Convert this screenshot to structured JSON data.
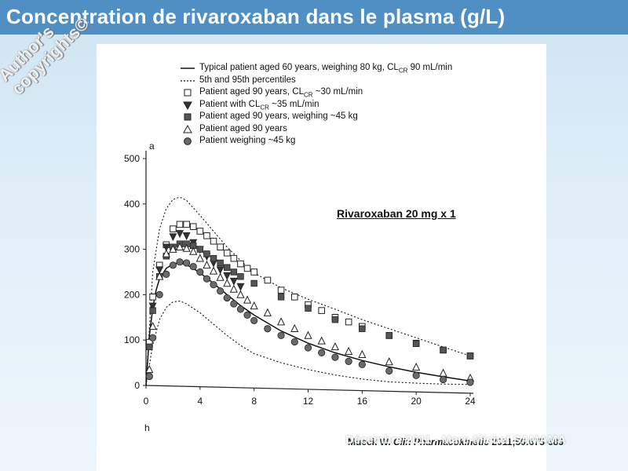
{
  "slide": {
    "title": "Concentration de rivaroxaban dans le plasma (g/L)",
    "watermark_lines": [
      "Author's",
      "copyrights©"
    ],
    "footer_faint": "Décembre 2011 - Marc-Michel SAMAMA"
  },
  "figure": {
    "subtitle": "Rivaroxaban 20 mg x 1",
    "credit_author": "Mueck W.",
    "credit_journal": "Clin Pharmacokinetic",
    "credit_ref": "2011;50:675-686",
    "panel_label": "a",
    "x_axis_label": "h"
  },
  "colors": {
    "title_bar": "#4f8fc4",
    "title_text": "#ffffff",
    "filled_square": "#555555",
    "filled_circle": "#6a6a6a"
  },
  "chart_data": {
    "type": "line",
    "title": "Rivaroxaban 20 mg x 1",
    "xlabel": "h",
    "ylabel": "",
    "xlim": [
      0,
      24
    ],
    "ylim": [
      0,
      500
    ],
    "x_ticks": [
      0,
      4,
      8,
      12,
      16,
      20,
      24
    ],
    "y_ticks": [
      0,
      100,
      200,
      300,
      400,
      500
    ],
    "legend_position": "top",
    "series": [
      {
        "name": "Typical patient aged 60 years, weighing 80 kg, CLCR 90 mL/min",
        "marker": "solid-line",
        "x": [
          0,
          0.25,
          0.5,
          0.75,
          1,
          1.5,
          2,
          2.5,
          3,
          3.5,
          4,
          5,
          6,
          7,
          8,
          10,
          12,
          14,
          16,
          18,
          20,
          22,
          24
        ],
        "y": [
          0,
          110,
          170,
          210,
          235,
          258,
          268,
          270,
          266,
          258,
          248,
          225,
          200,
          176,
          155,
          120,
          93,
          72,
          55,
          41,
          29,
          19,
          10
        ]
      },
      {
        "name": "5th and 95th percentiles (upper)",
        "marker": "dotted-line",
        "x": [
          0,
          0.5,
          1,
          1.5,
          2,
          2.5,
          3,
          4,
          5,
          6,
          7,
          8,
          10,
          12,
          14,
          16,
          18,
          20,
          22,
          24
        ],
        "y": [
          0,
          250,
          345,
          390,
          410,
          415,
          408,
          375,
          340,
          305,
          275,
          248,
          215,
          190,
          168,
          145,
          125,
          105,
          85,
          65
        ]
      },
      {
        "name": "5th and 95th percentiles (lower)",
        "marker": "dotted-line",
        "x": [
          0,
          0.5,
          1,
          1.5,
          2,
          2.5,
          3,
          4,
          5,
          6,
          7,
          8,
          10,
          12,
          14,
          16,
          18,
          20,
          22,
          24
        ],
        "y": [
          0,
          90,
          145,
          172,
          184,
          186,
          180,
          160,
          135,
          110,
          88,
          70,
          50,
          35,
          23,
          14,
          8,
          5,
          3,
          2
        ]
      },
      {
        "name": "Patient aged 90 years, CLCR ~30 mL/min",
        "marker": "open-square",
        "x": [
          0.25,
          0.5,
          1,
          1.5,
          2,
          2.5,
          3,
          3.5,
          4,
          4.5,
          5,
          5.5,
          6,
          6.5,
          7,
          7.5,
          8,
          9,
          10,
          11,
          12,
          13,
          14,
          15,
          16,
          18,
          20,
          22,
          24
        ],
        "y": [
          95,
          195,
          265,
          310,
          345,
          355,
          355,
          350,
          340,
          330,
          318,
          305,
          292,
          280,
          268,
          258,
          250,
          232,
          210,
          195,
          178,
          165,
          150,
          140,
          130,
          110,
          93,
          78,
          65
        ]
      },
      {
        "name": "Patient with CLCR ~35 mL/min",
        "marker": "filled-triangle-down",
        "x": [
          0.5,
          1,
          1.5,
          2,
          2.5,
          3,
          3.5,
          4,
          4.5,
          5,
          5.5,
          6,
          6.5,
          7
        ],
        "y": [
          175,
          255,
          305,
          328,
          335,
          330,
          315,
          300,
          285,
          270,
          255,
          242,
          230,
          218
        ]
      },
      {
        "name": "Patient aged 90 years, weighing ~45 kg",
        "marker": "filled-square",
        "x": [
          0.25,
          0.5,
          1,
          1.5,
          2,
          2.5,
          3,
          3.5,
          4,
          4.5,
          5,
          5.5,
          6,
          6.5,
          7,
          8,
          10,
          12,
          14,
          16,
          18,
          20,
          22,
          24
        ],
        "y": [
          85,
          165,
          240,
          285,
          305,
          312,
          312,
          308,
          300,
          290,
          280,
          270,
          260,
          250,
          240,
          225,
          195,
          170,
          145,
          125,
          110,
          92,
          78,
          65
        ]
      },
      {
        "name": "Patient aged 90 years",
        "marker": "open-triangle-up",
        "x": [
          0.25,
          0.5,
          1,
          1.5,
          2,
          2.5,
          3,
          3.5,
          4,
          4.5,
          5,
          5.5,
          6,
          6.5,
          7,
          7.5,
          8,
          9,
          10,
          11,
          12,
          13,
          14,
          15,
          16,
          18,
          20,
          22,
          24
        ],
        "y": [
          35,
          130,
          240,
          290,
          300,
          305,
          302,
          295,
          280,
          265,
          252,
          238,
          225,
          212,
          200,
          188,
          175,
          160,
          140,
          125,
          110,
          98,
          85,
          75,
          68,
          52,
          40,
          27,
          16
        ]
      },
      {
        "name": "Patient weighing ~45 kg",
        "marker": "filled-circle",
        "x": [
          0.25,
          0.5,
          1,
          1.5,
          2,
          2.5,
          3,
          3.5,
          4,
          4.5,
          5,
          5.5,
          6,
          6.5,
          7,
          7.5,
          8,
          9,
          10,
          11,
          12,
          13,
          14,
          15,
          16,
          18,
          20,
          22,
          24
        ],
        "y": [
          20,
          105,
          200,
          245,
          265,
          272,
          270,
          262,
          250,
          235,
          222,
          208,
          193,
          180,
          168,
          155,
          143,
          125,
          110,
          96,
          83,
          72,
          62,
          53,
          46,
          32,
          22,
          13,
          7
        ]
      }
    ]
  }
}
